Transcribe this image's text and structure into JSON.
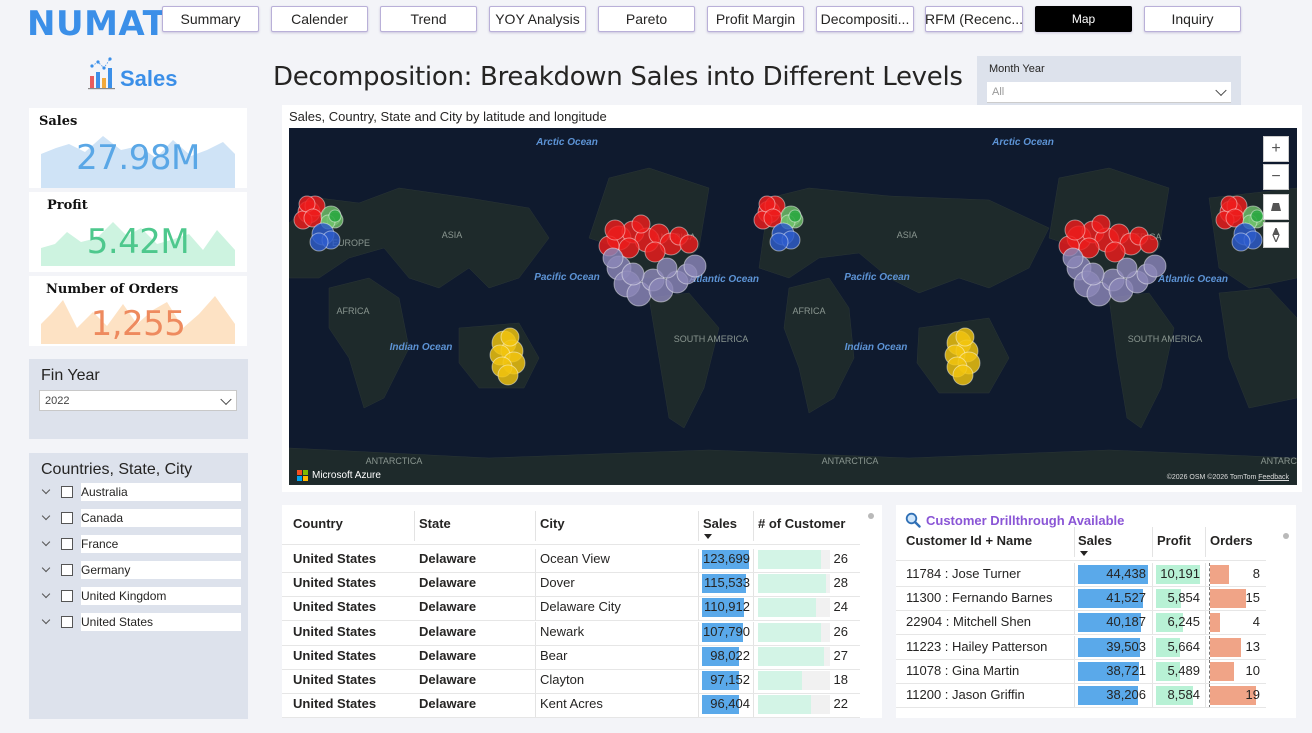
{
  "brand": "NUMAT",
  "nav": [
    {
      "label": "Summary",
      "active": false
    },
    {
      "label": "Calender",
      "active": false
    },
    {
      "label": "Trend",
      "active": false
    },
    {
      "label": "YOY Analysis",
      "active": false
    },
    {
      "label": "Pareto",
      "active": false
    },
    {
      "label": "Profit Margin",
      "active": false
    },
    {
      "label": "Decompositi...",
      "active": false
    },
    {
      "label": "RFM (Recenc...",
      "active": false
    },
    {
      "label": "Map",
      "active": true
    },
    {
      "label": "Inquiry",
      "active": false
    }
  ],
  "sales_logo": "Sales",
  "kpis": [
    {
      "label": "Sales",
      "value": "27.98M",
      "color": "#5aa7e6",
      "fill": "#cfe3f6"
    },
    {
      "label": "Profit",
      "value": "5.42M",
      "color": "#4ec88d",
      "fill": "#cdf3e0"
    },
    {
      "label": "Number of Orders",
      "value": "1,255",
      "color": "#ee8a5e",
      "fill": "#fde2c4"
    }
  ],
  "fin_year": {
    "title": "Fin Year",
    "value": "2022"
  },
  "countries": {
    "title": "Countries, State, City",
    "items": [
      "Australia",
      "Canada",
      "France",
      "Germany",
      "United Kingdom",
      "United States"
    ]
  },
  "page_title": "Decomposition: Breakdown Sales into Different Levels",
  "month_year": {
    "label": "Month Year",
    "value": "All"
  },
  "map": {
    "title": "Sales, Country, State and City by latitude and longitude",
    "labels": [
      {
        "text": "Arctic Ocean",
        "kind": "ocean"
      },
      {
        "text": "Arctic Ocean",
        "kind": "ocean"
      },
      {
        "text": "ASIA",
        "kind": "land"
      },
      {
        "text": "ASIA",
        "kind": "land"
      },
      {
        "text": "EUROPE",
        "kind": "land"
      },
      {
        "text": "AMERICA",
        "kind": "land"
      },
      {
        "text": "AMERICA",
        "kind": "land"
      },
      {
        "text": "Pacific Ocean",
        "kind": "ocean"
      },
      {
        "text": "Pacific Ocean",
        "kind": "ocean"
      },
      {
        "text": "Atlantic Ocean",
        "kind": "ocean"
      },
      {
        "text": "Atlantic Ocean",
        "kind": "ocean"
      },
      {
        "text": "AFRICA",
        "kind": "land"
      },
      {
        "text": "AFRICA",
        "kind": "land"
      },
      {
        "text": "Indian Ocean",
        "kind": "ocean"
      },
      {
        "text": "Indian Ocean",
        "kind": "ocean"
      },
      {
        "text": "SOUTH AMERICA",
        "kind": "land"
      },
      {
        "text": "SOUTH AMERICA",
        "kind": "land"
      },
      {
        "text": "ANTARCTICA",
        "kind": "land"
      },
      {
        "text": "ANTARCTICA",
        "kind": "land"
      },
      {
        "text": "ANTARCTICA",
        "kind": "land"
      }
    ],
    "controls": {
      "zoom_in": "+",
      "zoom_out": "−"
    },
    "attribution": "Microsoft Azure",
    "copyright": "©2026 OSM ©2026 TomTom",
    "feedback": "Feedback",
    "colors": {
      "red": "#ee1c1c",
      "green": "#22a33a",
      "blue": "#2d5ccc",
      "purple": "#8c87b8",
      "yellow": "#f2c40f"
    }
  },
  "city_table": {
    "headers": [
      "Country",
      "State",
      "City",
      "Sales",
      "# of Customer"
    ],
    "sales_max": 123699,
    "customer_max": 28,
    "rows": [
      {
        "country": "United States",
        "state": "Delaware",
        "city": "Ocean View",
        "sales": 123699,
        "sales_label": "123,699",
        "customers": 26
      },
      {
        "country": "United States",
        "state": "Delaware",
        "city": "Dover",
        "sales": 115533,
        "sales_label": "115,533",
        "customers": 28
      },
      {
        "country": "United States",
        "state": "Delaware",
        "city": "Delaware City",
        "sales": 110912,
        "sales_label": "110,912",
        "customers": 24
      },
      {
        "country": "United States",
        "state": "Delaware",
        "city": "Newark",
        "sales": 107790,
        "sales_label": "107,790",
        "customers": 26
      },
      {
        "country": "United States",
        "state": "Delaware",
        "city": "Bear",
        "sales": 98022,
        "sales_label": "98,022",
        "customers": 27
      },
      {
        "country": "United States",
        "state": "Delaware",
        "city": "Clayton",
        "sales": 97152,
        "sales_label": "97,152",
        "customers": 18
      },
      {
        "country": "United States",
        "state": "Delaware",
        "city": "Kent Acres",
        "sales": 96404,
        "sales_label": "96,404",
        "customers": 22
      }
    ]
  },
  "customer_table": {
    "title": "Customer Drillthrough Available",
    "headers": [
      "Customer Id + Name",
      "Sales",
      "Profit",
      "Orders"
    ],
    "sales_max": 44438,
    "profit_max": 10191,
    "orders_max": 19,
    "rows": [
      {
        "name": "11784 : Jose Turner",
        "sales": 44438,
        "sales_label": "44,438",
        "profit": 10191,
        "profit_label": "10,191",
        "orders": 8
      },
      {
        "name": "11300 : Fernando Barnes",
        "sales": 41527,
        "sales_label": "41,527",
        "profit": 5854,
        "profit_label": "5,854",
        "orders": 15
      },
      {
        "name": "22904 : Mitchell Shen",
        "sales": 40187,
        "sales_label": "40,187",
        "profit": 6245,
        "profit_label": "6,245",
        "orders": 4
      },
      {
        "name": "11223 : Hailey Patterson",
        "sales": 39503,
        "sales_label": "39,503",
        "profit": 5664,
        "profit_label": "5,664",
        "orders": 13
      },
      {
        "name": "11078 : Gina Martin",
        "sales": 38721,
        "sales_label": "38,721",
        "profit": 5489,
        "profit_label": "5,489",
        "orders": 10
      },
      {
        "name": "11200 : Jason Griffin",
        "sales": 38206,
        "sales_label": "38,206",
        "profit": 8584,
        "profit_label": "8,584",
        "orders": 19
      }
    ]
  }
}
